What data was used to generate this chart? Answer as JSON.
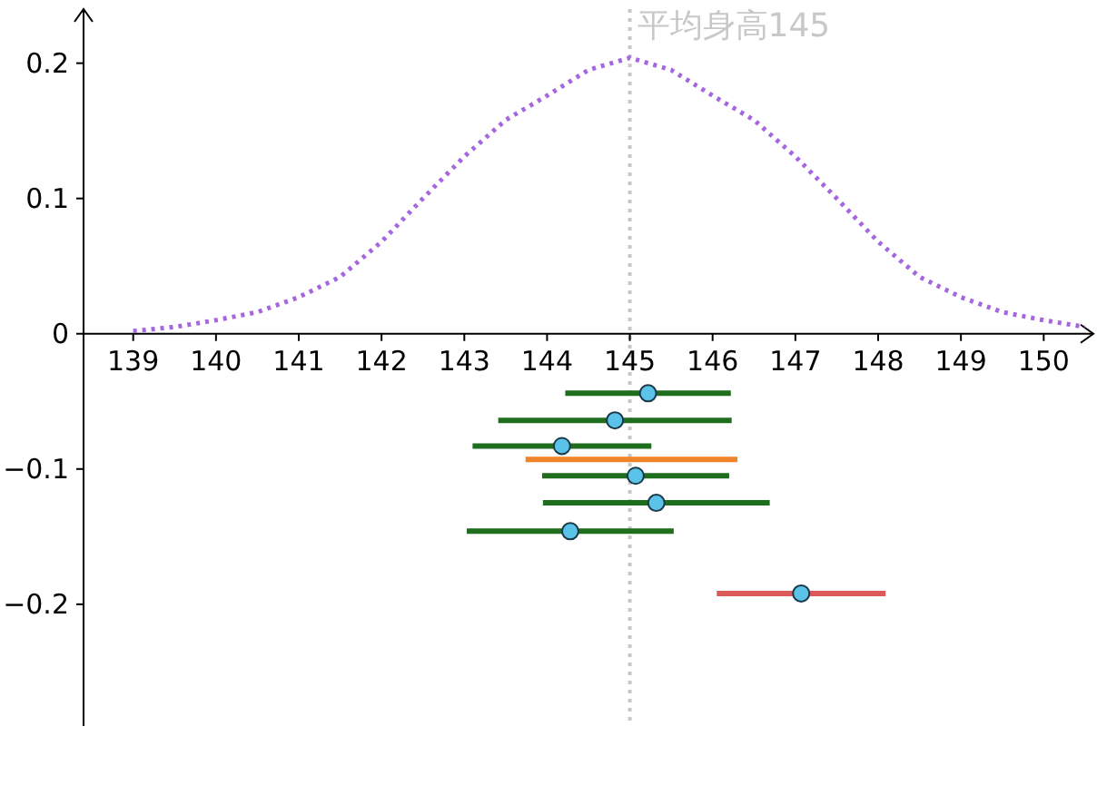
{
  "chart_data": {
    "type": "scatter",
    "xlim": [
      138.4,
      150.6
    ],
    "ylim": [
      -0.29,
      0.24
    ],
    "xticks": [
      139,
      140,
      141,
      142,
      143,
      144,
      145,
      146,
      147,
      148,
      149,
      150
    ],
    "yticks": [
      {
        "value": -0.2,
        "label": "−0.2"
      },
      {
        "value": -0.1,
        "label": "−0.1"
      },
      0,
      0.1,
      0.2
    ],
    "ref_lines": [
      {
        "axis": "x",
        "value": 145,
        "label": "平均身高145",
        "color": "#c8c8c8",
        "line_style": "dotted"
      }
    ],
    "series": [
      {
        "type": "line",
        "color": "#a566e0",
        "line_style": "dotted",
        "x": [
          139,
          139.5,
          140,
          140.5,
          141,
          141.5,
          142,
          142.5,
          143,
          143.5,
          144,
          144.5,
          145,
          145.5,
          146,
          146.5,
          147,
          147.5,
          148,
          148.5,
          149,
          149.5,
          150,
          150.5
        ],
        "values": [
          0.002,
          0.005,
          0.01,
          0.016,
          0.027,
          0.042,
          0.068,
          0.1,
          0.131,
          0.158,
          0.176,
          0.195,
          0.204,
          0.195,
          0.176,
          0.158,
          0.131,
          0.1,
          0.068,
          0.042,
          0.027,
          0.016,
          0.01,
          0.005
        ]
      },
      {
        "type": "line",
        "color": "#f08228",
        "line_style": "solid",
        "x": [
          143.74,
          146.3
        ],
        "values": [
          -0.093,
          -0.093
        ]
      },
      {
        "type": "line",
        "color": "#1e6e1e",
        "line_style": "solid",
        "x": [
          144.22,
          146.22
        ],
        "values": [
          -0.044,
          -0.044
        ]
      },
      {
        "type": "line",
        "color": "#1e6e1e",
        "line_style": "solid",
        "x": [
          143.41,
          146.23
        ],
        "values": [
          -0.064,
          -0.064
        ]
      },
      {
        "type": "line",
        "color": "#1e6e1e",
        "line_style": "solid",
        "x": [
          143.1,
          145.26
        ],
        "values": [
          -0.083,
          -0.083
        ]
      },
      {
        "type": "line",
        "color": "#1e6e1e",
        "line_style": "solid",
        "x": [
          143.94,
          146.2
        ],
        "values": [
          -0.105,
          -0.105
        ]
      },
      {
        "type": "line",
        "color": "#1e6e1e",
        "line_style": "solid",
        "x": [
          143.95,
          146.69
        ],
        "values": [
          -0.125,
          -0.125
        ]
      },
      {
        "type": "line",
        "color": "#1e6e1e",
        "line_style": "solid",
        "x": [
          143.03,
          145.53
        ],
        "values": [
          -0.146,
          -0.146
        ]
      },
      {
        "type": "line",
        "color": "#dc5a5a",
        "line_style": "solid",
        "x": [
          146.05,
          148.09
        ],
        "values": [
          -0.192,
          -0.192
        ]
      },
      {
        "color": "#5bc3e8",
        "marker": "circle",
        "x": [
          145.22,
          144.82,
          144.18,
          145.07,
          145.32,
          144.28,
          147.07
        ],
        "values": [
          -0.044,
          -0.064,
          -0.083,
          -0.105,
          -0.125,
          -0.146,
          -0.192
        ]
      }
    ]
  }
}
